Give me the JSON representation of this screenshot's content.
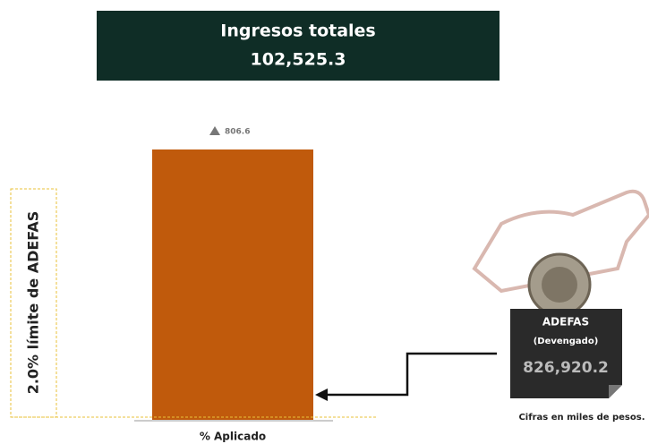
{
  "header": {
    "title": "Ingresos totales",
    "value": "102,525.3"
  },
  "bar": {
    "top_label": "806.6",
    "category": "% Aplicado"
  },
  "limit_label": "2.0% límite de ADEFAS",
  "adefas": {
    "title": "ADEFAS",
    "subtitle": "(Devengado)",
    "value": "826,920.2"
  },
  "footnote": "Cifras en miles de pesos."
}
